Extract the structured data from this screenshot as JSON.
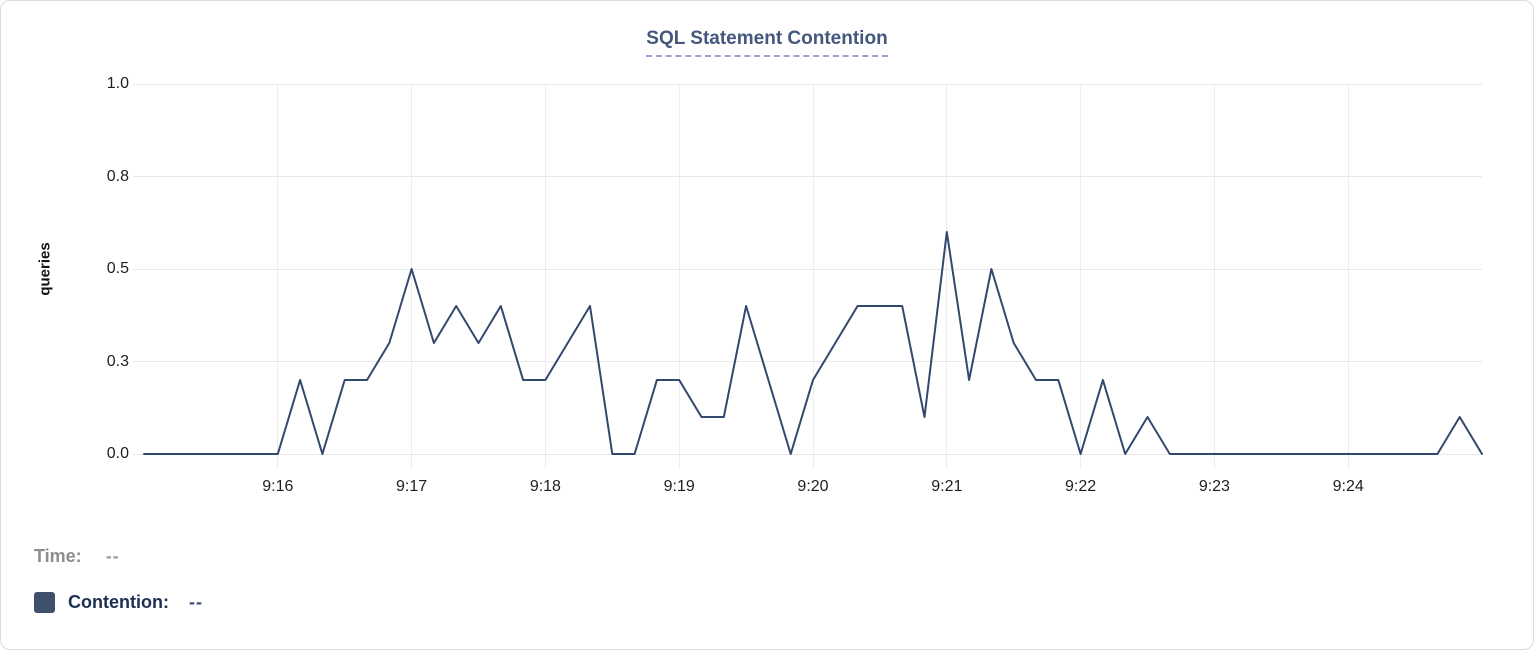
{
  "chart_data": {
    "type": "line",
    "title": "SQL Statement Contention",
    "xlabel": "",
    "ylabel": "queries",
    "x_start_time": "9:15:00",
    "x_end_time": "9:25:00",
    "x_interval_seconds": 10,
    "x_tick_labels": [
      "9:16",
      "9:17",
      "9:18",
      "9:19",
      "9:20",
      "9:21",
      "9:22",
      "9:23",
      "9:24"
    ],
    "y_tick_labels": [
      {
        "value": 1.0,
        "label": "1.0"
      },
      {
        "value": 0.75,
        "label": "0.8"
      },
      {
        "value": 0.5,
        "label": "0.5"
      },
      {
        "value": 0.25,
        "label": "0.3"
      },
      {
        "value": 0.0,
        "label": "0.0"
      }
    ],
    "ylim": [
      0,
      1
    ],
    "grid": true,
    "legend_position": "bottom-left",
    "series": [
      {
        "name": "Contention",
        "color": "#33486d",
        "values": [
          0,
          0,
          0,
          0,
          0,
          0,
          0,
          0.2,
          0,
          0.2,
          0.2,
          0.3,
          0.5,
          0.3,
          0.4,
          0.3,
          0.4,
          0.2,
          0.2,
          0.3,
          0.4,
          0,
          0,
          0.2,
          0.2,
          0.1,
          0.1,
          0.4,
          0.2,
          0,
          0.2,
          0.3,
          0.4,
          0.4,
          0.4,
          0.1,
          0.6,
          0.2,
          0.5,
          0.3,
          0.2,
          0.2,
          0,
          0.2,
          0,
          0.1,
          0,
          0,
          0,
          0,
          0,
          0,
          0,
          0,
          0,
          0,
          0,
          0,
          0,
          0.1,
          0
        ]
      }
    ]
  },
  "legend": {
    "time_label": "Time:",
    "time_value": "--",
    "series_label": "Contention:",
    "series_value": "--",
    "swatch_color": "#3f506c"
  },
  "colors": {
    "title_text": "#44577d",
    "title_underline": "#9aa3d4",
    "grid_line": "#e9e9e9",
    "axis_text": "#1f1f1f",
    "card_border": "#dcdcdc",
    "time_label_text": "#8d8d8d",
    "series_label_text": "#1d2f52",
    "line_color": "#33486d"
  }
}
